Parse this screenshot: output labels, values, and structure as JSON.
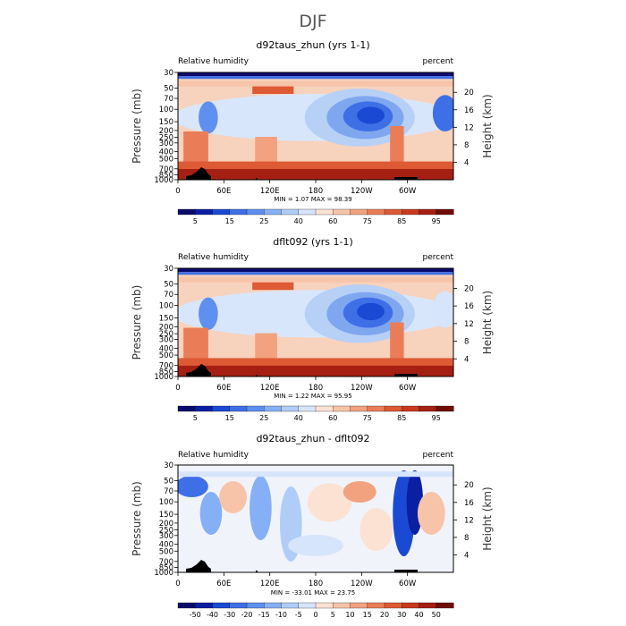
{
  "figure_title": "DJF",
  "chart_data": [
    {
      "type": "heatmap",
      "title": "d92taus_zhun (yrs 1-1)",
      "left_label": "Relative humidity",
      "right_label": "percent",
      "xlabel": "",
      "ylabel": "Pressure (mb)",
      "y2label": "Height (km)",
      "x_ticks": [
        "0",
        "60E",
        "120E",
        "180",
        "120W",
        "60W"
      ],
      "x_tick_values": [
        0,
        60,
        120,
        180,
        240,
        300
      ],
      "xlim": [
        0,
        360
      ],
      "y_ticks": [
        "1000",
        "850",
        "700",
        "500",
        "400",
        "300",
        "250",
        "200",
        "150",
        "100",
        "70",
        "50",
        "30"
      ],
      "y_tick_values": [
        1000,
        850,
        700,
        500,
        400,
        300,
        250,
        200,
        150,
        100,
        70,
        50,
        30
      ],
      "y2_ticks": [
        "4",
        "8",
        "12",
        "16",
        "20"
      ],
      "y2_tick_values": [
        4,
        8,
        12,
        16,
        20
      ],
      "stats": "MIN =     1.07   MAX =   98.39",
      "colorbar_labels": [
        "5",
        "15",
        "25",
        "40",
        "60",
        "75",
        "85",
        "95"
      ],
      "colorbar_levels": [
        5,
        10,
        15,
        20,
        25,
        30,
        40,
        50,
        60,
        70,
        75,
        80,
        85,
        90,
        95
      ],
      "colorbar_colors": [
        "#0a0a6e",
        "#0b1fa3",
        "#1a4ad4",
        "#3f6fe6",
        "#5f8fef",
        "#86b0f5",
        "#b0cdf8",
        "#d6e5fb",
        "#fbe2d3",
        "#f7c4a9",
        "#f2a27e",
        "#ea7d58",
        "#dd5a35",
        "#c9391f",
        "#a51f12",
        "#6e0c06"
      ]
    },
    {
      "type": "heatmap",
      "title": "dflt092 (yrs 1-1)",
      "left_label": "Relative humidity",
      "right_label": "percent",
      "xlabel": "",
      "ylabel": "Pressure (mb)",
      "y2label": "Height (km)",
      "x_ticks": [
        "0",
        "60E",
        "120E",
        "180",
        "120W",
        "60W"
      ],
      "x_tick_values": [
        0,
        60,
        120,
        180,
        240,
        300
      ],
      "xlim": [
        0,
        360
      ],
      "y_ticks": [
        "1000",
        "850",
        "700",
        "500",
        "400",
        "300",
        "250",
        "200",
        "150",
        "100",
        "70",
        "50",
        "30"
      ],
      "y_tick_values": [
        1000,
        850,
        700,
        500,
        400,
        300,
        250,
        200,
        150,
        100,
        70,
        50,
        30
      ],
      "y2_ticks": [
        "4",
        "8",
        "12",
        "16",
        "20"
      ],
      "y2_tick_values": [
        4,
        8,
        12,
        16,
        20
      ],
      "stats": "MIN =     1.22   MAX =   95.95",
      "colorbar_labels": [
        "5",
        "15",
        "25",
        "40",
        "60",
        "75",
        "85",
        "95"
      ],
      "colorbar_levels": [
        5,
        10,
        15,
        20,
        25,
        30,
        40,
        50,
        60,
        70,
        75,
        80,
        85,
        90,
        95
      ],
      "colorbar_colors": [
        "#0a0a6e",
        "#0b1fa3",
        "#1a4ad4",
        "#3f6fe6",
        "#5f8fef",
        "#86b0f5",
        "#b0cdf8",
        "#d6e5fb",
        "#fbe2d3",
        "#f7c4a9",
        "#f2a27e",
        "#ea7d58",
        "#dd5a35",
        "#c9391f",
        "#a51f12",
        "#6e0c06"
      ]
    },
    {
      "type": "heatmap",
      "title": "d92taus_zhun - dflt092",
      "left_label": "Relative humidity",
      "right_label": "percent",
      "xlabel": "",
      "ylabel": "Pressure (mb)",
      "y2label": "Height (km)",
      "x_ticks": [
        "0",
        "60E",
        "120E",
        "180",
        "120W",
        "60W"
      ],
      "x_tick_values": [
        0,
        60,
        120,
        180,
        240,
        300
      ],
      "xlim": [
        0,
        360
      ],
      "y_ticks": [
        "1000",
        "850",
        "700",
        "500",
        "400",
        "300",
        "250",
        "200",
        "150",
        "100",
        "70",
        "50",
        "30"
      ],
      "y_tick_values": [
        1000,
        850,
        700,
        500,
        400,
        300,
        250,
        200,
        150,
        100,
        70,
        50,
        30
      ],
      "y2_ticks": [
        "4",
        "8",
        "12",
        "16",
        "20"
      ],
      "y2_tick_values": [
        4,
        8,
        12,
        16,
        20
      ],
      "stats": "MIN =   -33.01   MAX =   23.75",
      "colorbar_labels": [
        "-50",
        "-40",
        "-30",
        "-20",
        "-15",
        "-10",
        "-5",
        "0",
        "5",
        "10",
        "15",
        "20",
        "30",
        "40",
        "50"
      ],
      "colorbar_levels": [
        -50,
        -40,
        -30,
        -20,
        -15,
        -10,
        -5,
        0,
        5,
        10,
        15,
        20,
        30,
        40,
        50
      ],
      "colorbar_colors": [
        "#0a0a6e",
        "#0b1fa3",
        "#1a4ad4",
        "#3f6fe6",
        "#5f8fef",
        "#86b0f5",
        "#b0cdf8",
        "#d6e5fb",
        "#fbe2d3",
        "#f7c4a9",
        "#f2a27e",
        "#ea7d58",
        "#dd5a35",
        "#c9391f",
        "#a51f12",
        "#6e0c06"
      ]
    }
  ]
}
